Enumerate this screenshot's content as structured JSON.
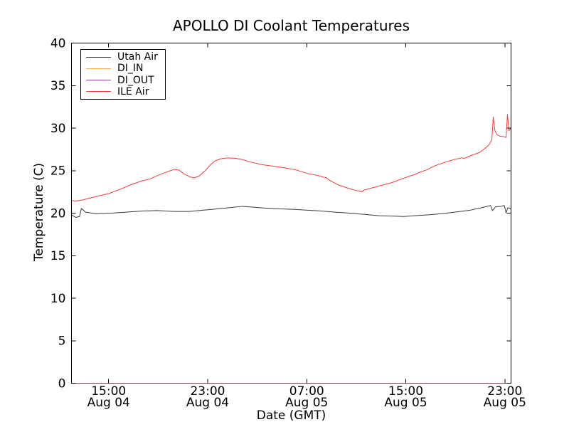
{
  "chart_data": {
    "type": "line",
    "title": "APOLLO DI Coolant Temperatures",
    "xlabel": "Date (GMT)",
    "ylabel": "Temperature (C)",
    "ylim": [
      0,
      40
    ],
    "y_ticks": [
      0,
      5,
      10,
      15,
      20,
      25,
      30,
      35,
      40
    ],
    "x_unit": "hours from Aug 04 12:00 GMT (axis start)",
    "x_range": [
      0,
      35.5
    ],
    "x_ticks": [
      {
        "hour": 3,
        "time": "15:00",
        "date": "Aug 04"
      },
      {
        "hour": 11,
        "time": "23:00",
        "date": "Aug 04"
      },
      {
        "hour": 19,
        "time": "07:00",
        "date": "Aug 05"
      },
      {
        "hour": 27,
        "time": "15:00",
        "date": "Aug 05"
      },
      {
        "hour": 35,
        "time": "23:00",
        "date": "Aug 05"
      }
    ],
    "grid": false,
    "legend_position": "upper left",
    "series": [
      {
        "name": "Utah Air",
        "color": "#3a3a3a",
        "points": [
          [
            0,
            19.8
          ],
          [
            0.35,
            19.5
          ],
          [
            0.65,
            19.6
          ],
          [
            0.8,
            20.55
          ],
          [
            1.15,
            20.1
          ],
          [
            2.0,
            19.95
          ],
          [
            3.2,
            20.0
          ],
          [
            4.3,
            20.1
          ],
          [
            5.7,
            20.25
          ],
          [
            6.9,
            20.3
          ],
          [
            8.3,
            20.2
          ],
          [
            9.5,
            20.2
          ],
          [
            10.6,
            20.35
          ],
          [
            11.8,
            20.5
          ],
          [
            12.8,
            20.65
          ],
          [
            13.8,
            20.8
          ],
          [
            14.7,
            20.7
          ],
          [
            15.6,
            20.6
          ],
          [
            16.8,
            20.5
          ],
          [
            17.9,
            20.45
          ],
          [
            19.1,
            20.35
          ],
          [
            20.2,
            20.25
          ],
          [
            21.4,
            20.1
          ],
          [
            22.5,
            20.0
          ],
          [
            23.7,
            19.85
          ],
          [
            24.8,
            19.7
          ],
          [
            26.0,
            19.65
          ],
          [
            26.8,
            19.6
          ],
          [
            27.7,
            19.7
          ],
          [
            28.8,
            19.8
          ],
          [
            30.0,
            19.95
          ],
          [
            31.1,
            20.15
          ],
          [
            32.2,
            20.35
          ],
          [
            33.0,
            20.6
          ],
          [
            33.7,
            20.85
          ],
          [
            33.85,
            20.9
          ],
          [
            34.0,
            20.3
          ],
          [
            34.25,
            20.75
          ],
          [
            34.7,
            20.8
          ],
          [
            34.95,
            20.9
          ],
          [
            35.1,
            20.05
          ],
          [
            35.25,
            20.65
          ],
          [
            35.5,
            20.5
          ]
        ]
      },
      {
        "name": "DI_IN",
        "color": "#ffab4a",
        "points": [
          [
            0,
            0
          ],
          [
            35.5,
            0
          ]
        ]
      },
      {
        "name": "DI_OUT",
        "color": "#8a3d9c",
        "points": [
          [
            0,
            0
          ],
          [
            35.5,
            0
          ]
        ]
      },
      {
        "name": "ILE Air",
        "color": "#f03c3c",
        "points": [
          [
            0,
            21.5
          ],
          [
            0.3,
            21.42
          ],
          [
            0.9,
            21.55
          ],
          [
            1.7,
            21.85
          ],
          [
            3.0,
            22.3
          ],
          [
            4.0,
            22.85
          ],
          [
            4.9,
            23.4
          ],
          [
            5.7,
            23.8
          ],
          [
            6.3,
            24.0
          ],
          [
            7.0,
            24.45
          ],
          [
            7.8,
            24.9
          ],
          [
            8.3,
            25.15
          ],
          [
            8.7,
            25.05
          ],
          [
            9.1,
            24.6
          ],
          [
            9.6,
            24.25
          ],
          [
            9.9,
            24.15
          ],
          [
            10.3,
            24.35
          ],
          [
            10.8,
            25.0
          ],
          [
            11.2,
            25.65
          ],
          [
            11.6,
            26.15
          ],
          [
            12.1,
            26.4
          ],
          [
            12.6,
            26.5
          ],
          [
            13.2,
            26.45
          ],
          [
            13.8,
            26.3
          ],
          [
            14.5,
            26.0
          ],
          [
            15.4,
            25.7
          ],
          [
            16.4,
            25.5
          ],
          [
            17.3,
            25.3
          ],
          [
            18.1,
            25.1
          ],
          [
            19.1,
            24.65
          ],
          [
            19.8,
            24.45
          ],
          [
            20.3,
            24.25
          ],
          [
            20.6,
            24.15
          ],
          [
            20.85,
            23.85
          ],
          [
            21.5,
            23.35
          ],
          [
            22.3,
            22.95
          ],
          [
            23.0,
            22.65
          ],
          [
            23.3,
            22.6
          ],
          [
            23.45,
            22.5
          ],
          [
            23.6,
            22.7
          ],
          [
            24.1,
            22.9
          ],
          [
            25.0,
            23.25
          ],
          [
            25.9,
            23.6
          ],
          [
            26.7,
            24.05
          ],
          [
            27.4,
            24.4
          ],
          [
            27.75,
            24.55
          ],
          [
            28.1,
            24.8
          ],
          [
            28.7,
            25.1
          ],
          [
            29.4,
            25.6
          ],
          [
            30.2,
            26.0
          ],
          [
            30.9,
            26.3
          ],
          [
            31.5,
            26.5
          ],
          [
            31.75,
            26.45
          ],
          [
            32.3,
            26.8
          ],
          [
            32.9,
            27.1
          ],
          [
            33.3,
            27.5
          ],
          [
            33.7,
            28.0
          ],
          [
            33.95,
            28.6
          ],
          [
            34.06,
            31.3
          ],
          [
            34.2,
            29.7
          ],
          [
            34.35,
            29.25
          ],
          [
            34.6,
            29.05
          ],
          [
            34.95,
            29.0
          ],
          [
            35.1,
            28.9
          ],
          [
            35.21,
            31.6
          ],
          [
            35.33,
            29.7
          ],
          [
            35.5,
            30.0
          ]
        ]
      }
    ]
  }
}
